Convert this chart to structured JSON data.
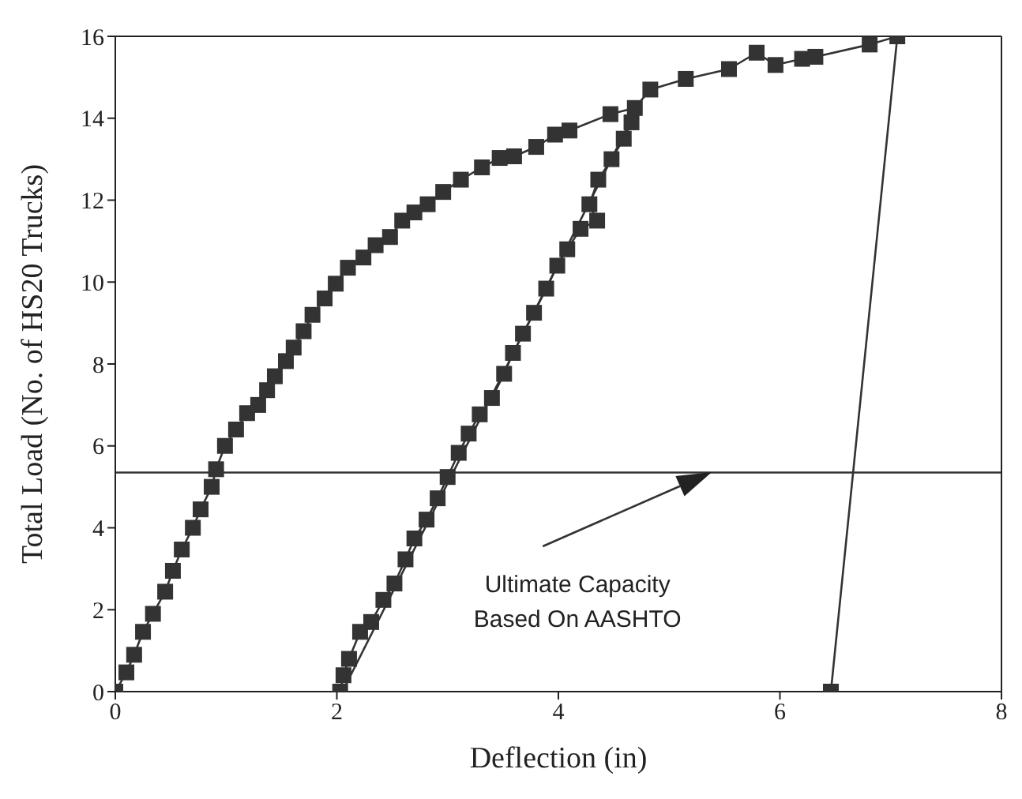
{
  "chart_data": {
    "type": "line",
    "xlabel": "Deflection (in)",
    "ylabel": "Total Load (No. of HS20 Trucks)",
    "xlim": [
      0,
      8
    ],
    "xticks": [
      0,
      2,
      4,
      6,
      8
    ],
    "ylim": [
      0,
      16
    ],
    "yticks": [
      0,
      2,
      4,
      6,
      8,
      10,
      12,
      14,
      16
    ],
    "series": [
      {
        "color": "#333333",
        "marker": "square",
        "x": [
          0,
          0.1,
          0.17,
          0.25,
          0.34,
          0.45,
          0.52,
          0.6,
          0.7,
          0.77,
          0.87,
          0.91,
          0.99,
          1.09,
          1.19,
          1.29,
          1.37,
          1.44,
          1.54,
          1.61,
          1.7,
          1.78,
          1.89,
          1.99,
          2.1,
          2.24,
          2.35,
          2.48,
          2.59,
          2.7,
          2.82,
          2.96,
          3.12,
          3.31,
          3.47,
          3.6,
          3.8,
          3.97,
          4.1,
          4.47,
          4.69,
          4.83,
          5.15,
          5.54,
          5.79,
          5.96,
          6.2,
          6.32,
          6.81,
          7.06,
          6.46
        ],
        "values": [
          0,
          0.47,
          0.9,
          1.46,
          1.9,
          2.44,
          2.95,
          3.47,
          4.0,
          4.45,
          5.0,
          5.43,
          6.0,
          6.4,
          6.8,
          7.0,
          7.36,
          7.7,
          8.07,
          8.4,
          8.8,
          9.2,
          9.6,
          9.96,
          10.35,
          10.6,
          10.9,
          11.1,
          11.5,
          11.7,
          11.9,
          12.2,
          12.5,
          12.8,
          13.03,
          13.07,
          13.3,
          13.6,
          13.7,
          14.1,
          14.25,
          14.7,
          14.96,
          15.2,
          15.6,
          15.3,
          15.45,
          15.5,
          15.8,
          16.0,
          0
        ]
      },
      {
        "color": "#333333",
        "marker": "square",
        "x": [
          2.03,
          2.06,
          2.11,
          2.21,
          2.31,
          2.42,
          2.52,
          2.62,
          2.7,
          2.81,
          2.91,
          3.0,
          3.1,
          3.19,
          3.29,
          3.4,
          3.51,
          3.59,
          3.68,
          3.78,
          3.89,
          3.99,
          4.08,
          4.2,
          4.35,
          4.28,
          4.36,
          4.48,
          4.59,
          4.66
        ],
        "values": [
          0,
          0.4,
          0.8,
          1.46,
          1.7,
          2.24,
          2.64,
          3.23,
          3.74,
          4.2,
          4.72,
          5.24,
          5.83,
          6.3,
          6.77,
          7.17,
          7.76,
          8.27,
          8.74,
          9.25,
          9.84,
          10.4,
          10.8,
          11.3,
          11.5,
          11.9,
          12.5,
          13.0,
          13.5,
          13.9
        ]
      },
      {
        "color": "#333333",
        "marker": "none",
        "x": [
          2.05,
          4.72
        ],
        "values": [
          0,
          14.3
        ]
      }
    ],
    "ref_lines": [
      {
        "axis": "y",
        "value": 5.35,
        "color": "#333333"
      }
    ],
    "annotations": [
      "Ultimate Capacity\nBased On AASHTO"
    ]
  }
}
